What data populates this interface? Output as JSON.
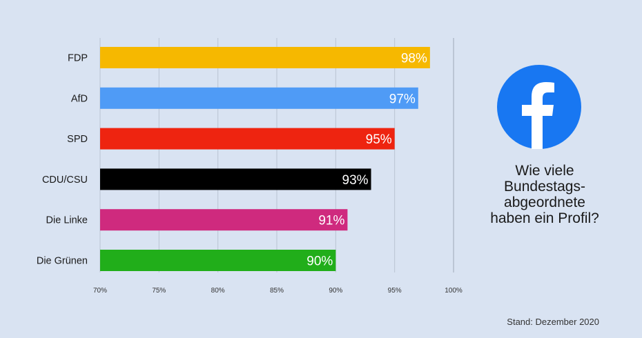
{
  "chart_data": {
    "type": "bar",
    "orientation": "horizontal",
    "categories": [
      "FDP",
      "AfD",
      "SPD",
      "CDU/CSU",
      "Die Linke",
      "Die Grünen"
    ],
    "values": [
      98,
      97,
      95,
      93,
      91,
      90
    ],
    "value_labels": [
      "98%",
      "97%",
      "95%",
      "93%",
      "91%",
      "90%"
    ],
    "colors": [
      "#f6b800",
      "#4f9bf6",
      "#ee2410",
      "#000000",
      "#cf2a7e",
      "#21ae1a"
    ],
    "xlim": [
      70,
      100
    ],
    "x_ticks": [
      70,
      75,
      80,
      85,
      90,
      95,
      100
    ],
    "x_tick_labels": [
      "70%",
      "75%",
      "80%",
      "85%",
      "90%",
      "95%",
      "100%"
    ],
    "grid": true,
    "title": "",
    "xlabel": "",
    "ylabel": ""
  },
  "side_title_lines": [
    "Wie viele",
    "Bundestags-",
    "abgeordnete",
    "haben ein Profil?"
  ],
  "logo": {
    "icon": "facebook-logo",
    "color": "#1877f2"
  },
  "footnote": "Stand: Dezember 2020"
}
